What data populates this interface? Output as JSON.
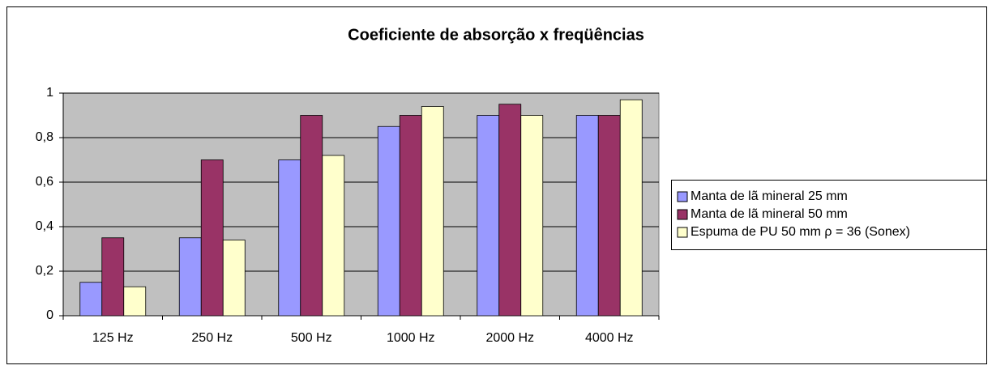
{
  "chart_data": {
    "type": "bar",
    "title": "Coeficiente de absorção x freqüências",
    "categories": [
      "125 Hz",
      "250 Hz",
      "500 Hz",
      "1000 Hz",
      "2000 Hz",
      "4000 Hz"
    ],
    "series": [
      {
        "name": "Manta de lã mineral 25 mm",
        "color": "#9999ff",
        "values": [
          0.15,
          0.35,
          0.7,
          0.85,
          0.9,
          0.9
        ]
      },
      {
        "name": "Manta de lã mineral 50 mm",
        "color": "#993366",
        "values": [
          0.35,
          0.7,
          0.9,
          0.9,
          0.95,
          0.9
        ]
      },
      {
        "name": "Espuma de PU 50 mm ρ = 36 (Sonex)",
        "color": "#ffffcc",
        "values": [
          0.13,
          0.34,
          0.72,
          0.94,
          0.9,
          0.97
        ]
      }
    ],
    "ylim": [
      0,
      1
    ],
    "yticks": [
      0,
      {
        "value": 0.2,
        "label": "0,2"
      },
      {
        "value": 0.4,
        "label": "0,4"
      },
      {
        "value": 0.6,
        "label": "0,6"
      },
      {
        "value": 0.8,
        "label": "0,8"
      },
      1
    ],
    "grid": true,
    "legend": "right"
  }
}
